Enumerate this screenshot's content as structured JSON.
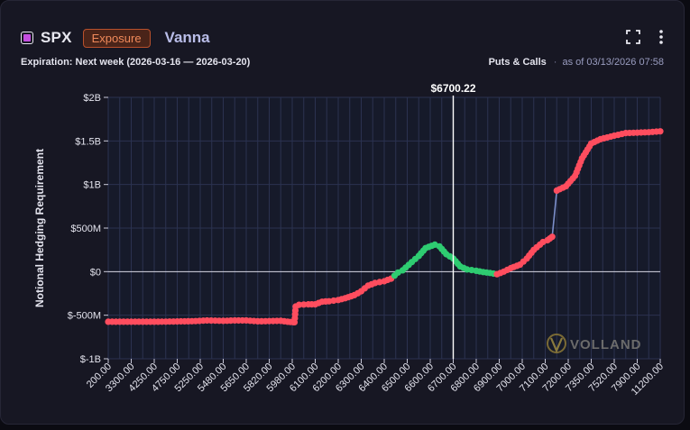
{
  "header": {
    "symbol": "SPX",
    "badge": "Exposure",
    "greek": "Vanna",
    "expiration": "Expiration: Next week (2026-03-16 — 2026-03-20)",
    "puts_calls": "Puts & Calls",
    "separator": "·",
    "as_of": "as of 03/13/2026 07:58"
  },
  "icons": {
    "symbol": "square-icon",
    "expand": "expand-icon",
    "menu": "more-vertical-icon"
  },
  "colors": {
    "negative": "#ff4d5e",
    "positive": "#2ecc71",
    "line": "#7b8ec9",
    "accent": "#c44ee0",
    "spot_line": "#ffffff"
  },
  "watermark": "VOLLAND",
  "chart_data": {
    "type": "line",
    "ylabel": "Notional Hedging Requirement",
    "ylim": [
      -1000000000,
      2000000000
    ],
    "y_ticks": [
      {
        "v": 2000000000,
        "label": "$2B"
      },
      {
        "v": 1500000000,
        "label": "$1.5B"
      },
      {
        "v": 1000000000,
        "label": "$1B"
      },
      {
        "v": 500000000,
        "label": "$500M"
      },
      {
        "v": 0,
        "label": "$0"
      },
      {
        "v": -500000000,
        "label": "$-500M"
      },
      {
        "v": -1000000000,
        "label": "$-1B"
      }
    ],
    "x_tick_labels": [
      "200.00",
      "3300.00",
      "4250.00",
      "4750.00",
      "5250.00",
      "5480.00",
      "5650.00",
      "5820.00",
      "5980.00",
      "6100.00",
      "6200.00",
      "6300.00",
      "6400.00",
      "6500.00",
      "6600.00",
      "6700.00",
      "6800.00",
      "6900.00",
      "7000.00",
      "7100.00",
      "7200.00",
      "7350.00",
      "7520.00",
      "7900.00",
      "11200.00"
    ],
    "spot": {
      "tick_position": 15.0,
      "label": "$6700.22"
    },
    "series": [
      {
        "points": [
          [
            0,
            -575
          ],
          [
            1,
            -575
          ],
          [
            2,
            -575
          ],
          [
            3,
            -572
          ],
          [
            3.8,
            -568
          ],
          [
            4.3,
            -560
          ],
          [
            5,
            -565
          ],
          [
            5.5,
            -560
          ],
          [
            6,
            -560
          ],
          [
            6.5,
            -570
          ],
          [
            7,
            -568
          ],
          [
            7.5,
            -565
          ],
          [
            7.8,
            -575
          ],
          [
            8.05,
            -580
          ],
          [
            8.1,
            -580
          ],
          [
            8.15,
            -400
          ],
          [
            8.3,
            -380
          ],
          [
            8.7,
            -375
          ],
          [
            9,
            -375
          ],
          [
            9.3,
            -345
          ],
          [
            9.6,
            -340
          ],
          [
            10,
            -325
          ],
          [
            10.3,
            -305
          ],
          [
            10.7,
            -270
          ],
          [
            11,
            -225
          ],
          [
            11.3,
            -160
          ],
          [
            11.6,
            -130
          ],
          [
            12,
            -110
          ],
          [
            12.3,
            -80
          ],
          [
            12.6,
            -10
          ],
          [
            12.8,
            15
          ],
          [
            13.2,
            110
          ],
          [
            13.5,
            180
          ],
          [
            13.8,
            270
          ],
          [
            14.2,
            310
          ],
          [
            14.4,
            290
          ],
          [
            14.7,
            200
          ],
          [
            15,
            150
          ],
          [
            15.3,
            60
          ],
          [
            15.6,
            25
          ],
          [
            16,
            10
          ],
          [
            16.3,
            -5
          ],
          [
            16.6,
            -15
          ],
          [
            16.9,
            -30
          ],
          [
            17.2,
            0
          ],
          [
            17.5,
            40
          ],
          [
            17.9,
            80
          ],
          [
            18.2,
            150
          ],
          [
            18.5,
            250
          ],
          [
            18.9,
            340
          ],
          [
            19.1,
            360
          ],
          [
            19.3,
            400
          ],
          [
            19.5,
            930
          ],
          [
            19.9,
            980
          ],
          [
            20.3,
            1100
          ],
          [
            20.6,
            1300
          ],
          [
            21,
            1470
          ],
          [
            21.4,
            1520
          ],
          [
            22,
            1560
          ],
          [
            22.5,
            1590
          ],
          [
            23.5,
            1600
          ],
          [
            24,
            1610
          ]
        ]
      }
    ]
  }
}
